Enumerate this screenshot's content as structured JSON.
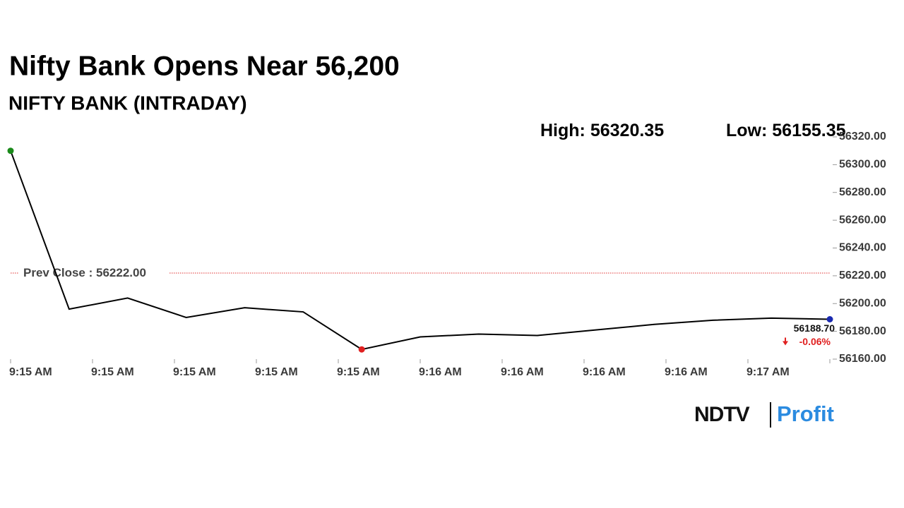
{
  "chart_data": {
    "type": "line",
    "title": "Nifty Bank Opens Near 56,200",
    "subtitle": "NIFTY BANK (INTRADAY)",
    "high_label": "High:",
    "high": 56320.35,
    "low_label": "Low:",
    "low": 56155.35,
    "categories": [
      null,
      null,
      null,
      null,
      null,
      null,
      null,
      null,
      null,
      null,
      null,
      null,
      null,
      null,
      null
    ],
    "series": [
      {
        "color": "#000000",
        "values": [
          56310,
          56196,
          56204,
          56190,
          56197,
          56194,
          56167,
          56176,
          56178,
          56177,
          56181,
          56185,
          56188,
          56189.5,
          56188.7
        ]
      }
    ],
    "xtick_labels": [
      "9:15 AM",
      "9:15 AM",
      "9:15 AM",
      "9:15 AM",
      "9:15 AM",
      "9:16 AM",
      "9:16 AM",
      "9:16 AM",
      "9:16 AM",
      "9:17 AM"
    ],
    "ylim": [
      56160,
      56320
    ],
    "yticks": [
      {
        "value": 56160,
        "label": "56160.00"
      },
      {
        "value": 56180,
        "label": "56180.00"
      },
      {
        "value": 56200,
        "label": "56200.00"
      },
      {
        "value": 56220,
        "label": "56220.00"
      },
      {
        "value": 56240,
        "label": "56240.00"
      },
      {
        "value": 56260,
        "label": "56260.00"
      },
      {
        "value": 56280,
        "label": "56280.00"
      },
      {
        "value": 56300,
        "label": "56300.00"
      },
      {
        "value": 56320,
        "label": "56320.00"
      }
    ],
    "prev_close_label": "Prev Close :",
    "prev_close": {
      "value": 56222,
      "label": "56222.00"
    },
    "prev_close_color": "#e03030",
    "last_value": {
      "value": 56188.7,
      "label": "56188.70"
    },
    "change": {
      "value": -0.06,
      "label": "-0.06%"
    },
    "change_color": "#e02020",
    "start_color": "#1a8a1a",
    "low_color": "#e02020",
    "end_color": "#1a2ab0",
    "logo": {
      "brand": "NDTV",
      "product": "Profit"
    }
  }
}
